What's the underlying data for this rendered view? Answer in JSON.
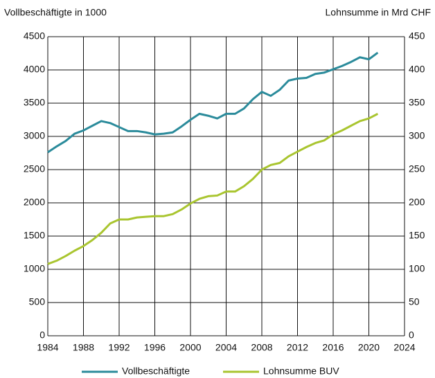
{
  "chart_data": {
    "type": "line",
    "y_label": "Vollbeschäftigte in 1000",
    "y2_label": "Lohnsumme in Mrd CHF",
    "x": [
      1984,
      1985,
      1986,
      1987,
      1988,
      1989,
      1990,
      1991,
      1992,
      1993,
      1994,
      1995,
      1996,
      1997,
      1998,
      1999,
      2000,
      2001,
      2002,
      2003,
      2004,
      2005,
      2006,
      2007,
      2008,
      2009,
      2010,
      2011,
      2012,
      2013,
      2014,
      2015,
      2016,
      2017,
      2018,
      2019,
      2020,
      2021
    ],
    "series": [
      {
        "name": "Vollbeschäftigte",
        "color": "#2b8b9b",
        "axis": "y",
        "values": [
          2760,
          2850,
          2930,
          3040,
          3090,
          3160,
          3230,
          3200,
          3140,
          3080,
          3080,
          3060,
          3030,
          3040,
          3060,
          3150,
          3250,
          3340,
          3310,
          3270,
          3340,
          3340,
          3420,
          3560,
          3670,
          3610,
          3700,
          3840,
          3870,
          3880,
          3940,
          3960,
          4010,
          4060,
          4120,
          4190,
          4160,
          4260
        ]
      },
      {
        "name": "Lohnsumme BUV",
        "color": "#a9c52f",
        "axis": "y2",
        "values": [
          108,
          113,
          120,
          128,
          135,
          144,
          155,
          169,
          175,
          175,
          178,
          179,
          180,
          180,
          183,
          190,
          199,
          206,
          210,
          211,
          217,
          217,
          225,
          236,
          250,
          257,
          260,
          270,
          277,
          284,
          290,
          294,
          303,
          309,
          316,
          323,
          327,
          334
        ]
      }
    ],
    "xlim": [
      1984,
      2024
    ],
    "xticks": [
      1984,
      1988,
      1992,
      1996,
      2000,
      2004,
      2008,
      2012,
      2016,
      2020,
      2024
    ],
    "ylim": [
      0,
      4500
    ],
    "yticks": [
      0,
      500,
      1000,
      1500,
      2000,
      2500,
      3000,
      3500,
      4000,
      4500
    ],
    "y2lim": [
      0,
      450
    ],
    "y2ticks": [
      0,
      50,
      100,
      150,
      200,
      250,
      300,
      350,
      400,
      450
    ],
    "grid": true,
    "legend": "bottom"
  }
}
